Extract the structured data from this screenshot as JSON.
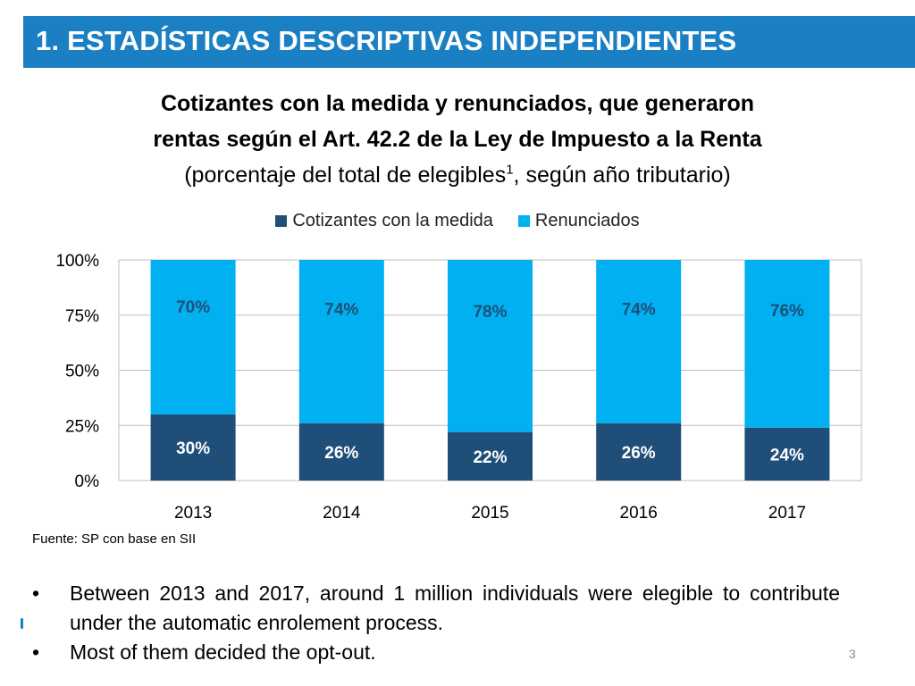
{
  "header": {
    "title": "1. ESTADÍSTICAS DESCRIPTIVAS INDEPENDIENTES"
  },
  "chart_title": {
    "line1": "Cotizantes con la medida y renunciados, que generaron",
    "line2": "rentas según el Art. 42.2 de la Ley de Impuesto a la Renta",
    "line3_prefix": "(porcentaje del total de elegibles",
    "line3_sup": "1",
    "line3_suffix": ", según año tributario)"
  },
  "chart_data": {
    "type": "bar",
    "stacked": true,
    "categories": [
      "2013",
      "2014",
      "2015",
      "2016",
      "2017"
    ],
    "series": [
      {
        "name": "Cotizantes con la medida",
        "values": [
          30,
          26,
          22,
          26,
          24
        ],
        "labels": [
          "30%",
          "26%",
          "22%",
          "26%",
          "24%"
        ],
        "color": "#1f4e79"
      },
      {
        "name": "Renunciados",
        "values": [
          70,
          74,
          78,
          74,
          76
        ],
        "labels": [
          "70%",
          "74%",
          "78%",
          "74%",
          "76%"
        ],
        "color": "#00b0f0"
      }
    ],
    "ylim": [
      0,
      100
    ],
    "yticks": [
      0,
      25,
      50,
      75,
      100
    ],
    "ytick_labels": [
      "0%",
      "25%",
      "50%",
      "75%",
      "100%"
    ],
    "legend_position": "top",
    "grid": true,
    "data_label_color": "#1f4e79",
    "data_label_color_inner": "#ffffff"
  },
  "source": "Fuente: SP con base en SII",
  "bullets": [
    "Between 2013 and 2017, around 1 million individuals were elegible to contribute under the automatic enrolement process.",
    "Most of them decided the opt-out."
  ],
  "bullet_symbol": "•",
  "page_number": "3",
  "colors": {
    "header_bg": "#1b7fc4",
    "header_text": "#ffffff",
    "grid": "#bfbfbf",
    "axis_text": "#000000"
  }
}
